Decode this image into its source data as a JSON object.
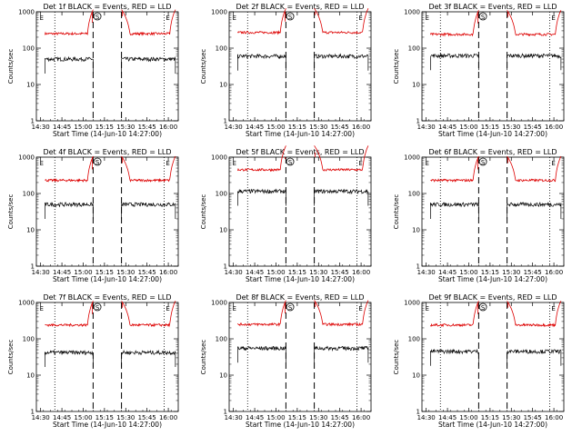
{
  "chart_data": {
    "type": "line",
    "layout": "3x3 grid",
    "yscale": "log",
    "ylim": [
      1,
      1000
    ],
    "ylabel": "Counts/sec",
    "xlabel": "Start Time (14-Jun-10 14:27:00)",
    "xlim": [
      "14:27",
      "16:07"
    ],
    "x_tick_labels": [
      "14:30",
      "14:45",
      "15:00",
      "15:15",
      "15:30",
      "15:45",
      "16:00"
    ],
    "y_tick_labels": [
      "1",
      "10",
      "100",
      "1000"
    ],
    "series_colors": {
      "events": "#000000",
      "lld": "#dd0000"
    },
    "markers": {
      "dotted_lines": [
        "14:40",
        "15:57"
      ],
      "dashed_lines": [
        "15:07",
        "15:27"
      ],
      "letter_labels": [
        {
          "text": "E",
          "at": "14:28"
        },
        {
          "text": "S",
          "at": "15:10",
          "circled": true
        },
        {
          "text": "E",
          "at": "15:57"
        }
      ]
    },
    "panels": [
      {
        "title": "Det 1f BLACK = Events, RED = LLD",
        "events_level": 50,
        "lld_level": 250
      },
      {
        "title": "Det 2f BLACK = Events, RED = LLD",
        "events_level": 60,
        "lld_level": 270
      },
      {
        "title": "Det 3f BLACK = Events, RED = LLD",
        "events_level": 62,
        "lld_level": 240
      },
      {
        "title": "Det 4f BLACK = Events, RED = LLD",
        "events_level": 50,
        "lld_level": 230
      },
      {
        "title": "Det 5f BLACK = Events, RED = LLD",
        "events_level": 115,
        "lld_level": 450
      },
      {
        "title": "Det 6f BLACK = Events, RED = LLD",
        "events_level": 50,
        "lld_level": 230
      },
      {
        "title": "Det 7f BLACK = Events, RED = LLD",
        "events_level": 42,
        "lld_level": 240
      },
      {
        "title": "Det 8f BLACK = Events, RED = LLD",
        "events_level": 55,
        "lld_level": 250
      },
      {
        "title": "Det 9f BLACK = Events, RED = LLD",
        "events_level": 45,
        "lld_level": 240
      }
    ]
  }
}
